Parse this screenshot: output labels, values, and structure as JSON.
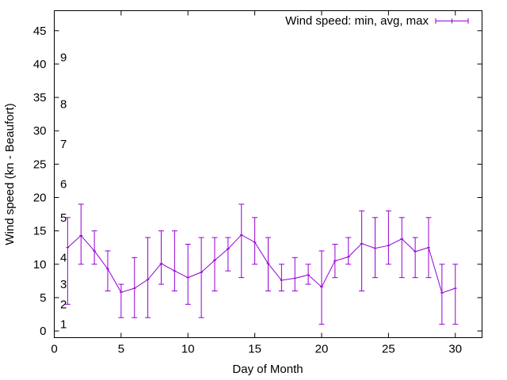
{
  "chart_data": {
    "type": "line",
    "title": "",
    "xlabel": "Day of Month",
    "ylabel": "Wind speed (kn - Beaufort)",
    "xlim": [
      0,
      32
    ],
    "ylim": [
      -1,
      48
    ],
    "xticks": [
      0,
      5,
      10,
      15,
      20,
      25,
      30
    ],
    "yticks": [
      0,
      5,
      10,
      15,
      20,
      25,
      30,
      35,
      40,
      45
    ],
    "beaufort_labels": [
      {
        "text": "1",
        "y": 1
      },
      {
        "text": "2",
        "y": 4
      },
      {
        "text": "3",
        "y": 7
      },
      {
        "text": "4",
        "y": 11
      },
      {
        "text": "5",
        "y": 17
      },
      {
        "text": "6",
        "y": 22
      },
      {
        "text": "7",
        "y": 28
      },
      {
        "text": "8",
        "y": 34
      },
      {
        "text": "9",
        "y": 41
      }
    ],
    "series": [
      {
        "name": "Wind speed: min, avg, max",
        "color": "#9400d3",
        "x": [
          1,
          2,
          3,
          4,
          5,
          6,
          7,
          8,
          9,
          10,
          11,
          12,
          13,
          14,
          15,
          16,
          17,
          18,
          19,
          20,
          21,
          22,
          23,
          24,
          25,
          26,
          27,
          28,
          29,
          30
        ],
        "avg": [
          12.5,
          14.3,
          12,
          9.3,
          5.8,
          6.4,
          7.7,
          10.1,
          9,
          8,
          8.8,
          10.6,
          12.3,
          14.4,
          13.3,
          10.1,
          7.6,
          7.9,
          8.4,
          6.6,
          10.5,
          11.1,
          13.1,
          12.4,
          12.8,
          13.8,
          11.9,
          12.5,
          5.7,
          6.4
        ],
        "min": [
          4,
          10,
          10,
          6,
          2,
          2,
          2,
          7,
          6,
          4,
          2,
          6,
          9,
          8,
          10,
          6,
          6,
          6,
          7,
          1,
          8,
          10,
          6,
          8,
          10,
          8,
          8,
          8,
          1,
          1
        ],
        "max": [
          17,
          19,
          15,
          12,
          7,
          11,
          14,
          15,
          15,
          13,
          14,
          14,
          14,
          19,
          17,
          14,
          10,
          11,
          10,
          12,
          13,
          14,
          18,
          17,
          18,
          17,
          14,
          17,
          10,
          10
        ]
      }
    ],
    "grid": false,
    "legend_position": "top-right"
  }
}
